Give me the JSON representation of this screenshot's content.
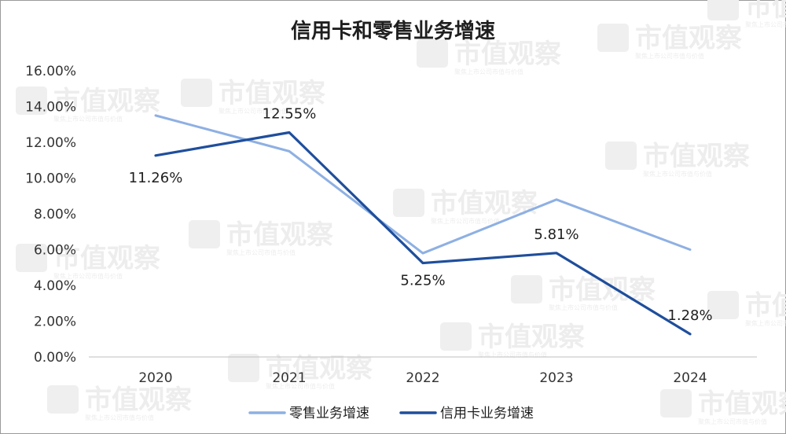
{
  "watermark": {
    "text": "市值观察",
    "subtext": "聚焦上市公司市值与价值"
  },
  "chart_data": {
    "type": "line",
    "title": "信用卡和零售业务增速",
    "xlabel": "",
    "ylabel": "",
    "categories": [
      "2020",
      "2021",
      "2022",
      "2023",
      "2024"
    ],
    "ylim": [
      0,
      16
    ],
    "yticks": [
      "0.00%",
      "2.00%",
      "4.00%",
      "6.00%",
      "8.00%",
      "10.00%",
      "12.00%",
      "14.00%",
      "16.00%"
    ],
    "grid": false,
    "legend_position": "bottom",
    "series": [
      {
        "name": "零售业务增速",
        "color": "#8eb0e3",
        "values": [
          13.5,
          11.5,
          5.8,
          8.8,
          6.0
        ],
        "labels": [
          "",
          "",
          "",
          "",
          ""
        ]
      },
      {
        "name": "信用卡业务增速",
        "color": "#1f4e9c",
        "values": [
          11.26,
          12.55,
          5.25,
          5.81,
          1.28
        ],
        "labels": [
          "11.26%",
          "12.55%",
          "5.25%",
          "5.81%",
          "1.28%"
        ]
      }
    ]
  }
}
